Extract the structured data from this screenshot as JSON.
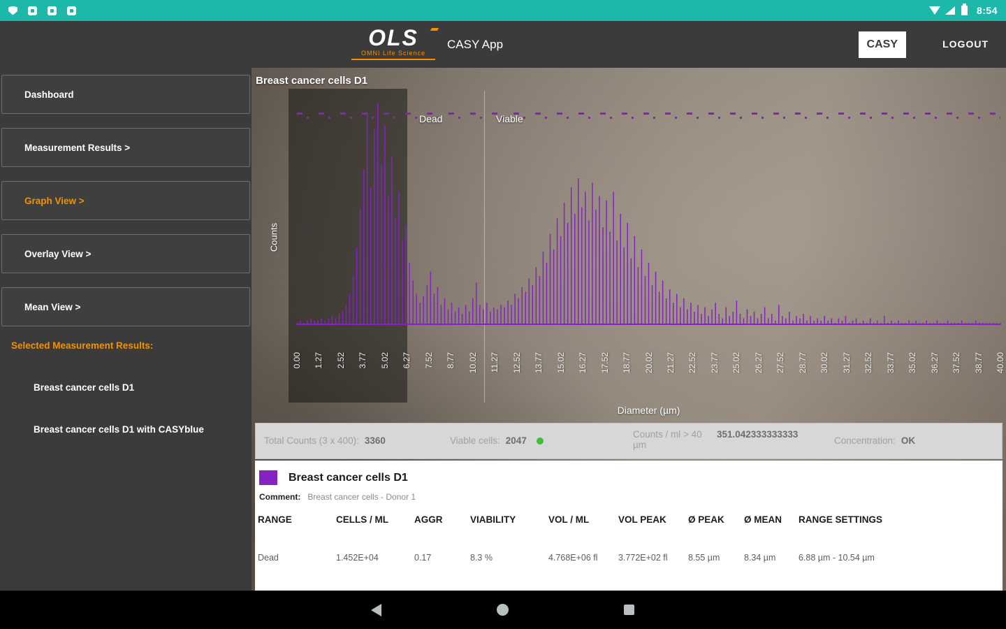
{
  "status_bar": {
    "time": "8:54"
  },
  "header": {
    "logo_text": "OLS",
    "logo_subtitle": "OMNI Life Science",
    "app_title": "CASY App",
    "casy_button_label": "CASY",
    "logout_label": "LOGOUT",
    "accent_color": "#f39200"
  },
  "sidebar": {
    "nav_items": [
      {
        "label": "Dashboard",
        "active": false
      },
      {
        "label": "Measurement Results >",
        "active": false
      },
      {
        "label": "Graph View >",
        "active": true
      },
      {
        "label": "Overlay View >",
        "active": false
      },
      {
        "label": "Mean View >",
        "active": false
      }
    ],
    "selected_results_label": "Selected Measurement Results:",
    "selected_results": [
      "Breast cancer cells D1",
      "Breast cancer cells D1 with CASYblue"
    ]
  },
  "chart_data": {
    "type": "bar",
    "title": "Breast cancer cells D1",
    "xlabel": "Diameter (µm)",
    "ylabel": "Counts",
    "xlim": [
      0,
      40
    ],
    "color": "#8622c2",
    "region_labels": {
      "dead": "Dead",
      "viable": "Viable"
    },
    "x_ticks": [
      "0.00",
      "1.27",
      "2.52",
      "3.77",
      "5.02",
      "6.27",
      "7.52",
      "8.77",
      "10.02",
      "11.27",
      "12.52",
      "13.77",
      "15.02",
      "16.27",
      "17.52",
      "18.77",
      "20.02",
      "21.27",
      "22.52",
      "23.77",
      "25.02",
      "26.27",
      "27.52",
      "28.77",
      "30.02",
      "31.27",
      "32.52",
      "33.77",
      "35.02",
      "36.27",
      "37.52",
      "38.77",
      "40.00"
    ],
    "values": [
      1,
      2,
      1,
      2,
      3,
      2,
      2,
      3,
      2,
      3,
      4,
      3,
      5,
      6,
      9,
      14,
      22,
      35,
      52,
      70,
      95,
      62,
      88,
      100,
      72,
      90,
      58,
      76,
      48,
      60,
      38,
      45,
      28,
      20,
      14,
      10,
      13,
      18,
      24,
      14,
      17,
      9,
      12,
      7,
      10,
      6,
      8,
      5,
      9,
      6,
      12,
      19,
      9,
      7,
      10,
      6,
      8,
      7,
      9,
      8,
      11,
      9,
      14,
      12,
      17,
      15,
      21,
      18,
      26,
      22,
      33,
      28,
      41,
      34,
      48,
      40,
      55,
      46,
      62,
      50,
      66,
      53,
      60,
      47,
      64,
      52,
      58,
      44,
      56,
      42,
      60,
      38,
      50,
      35,
      46,
      30,
      40,
      26,
      34,
      22,
      28,
      18,
      24,
      15,
      20,
      12,
      16,
      10,
      14,
      8,
      12,
      7,
      10,
      6,
      9,
      5,
      8,
      4,
      7,
      10,
      5,
      3,
      8,
      4,
      6,
      11,
      5,
      3,
      7,
      4,
      6,
      3,
      5,
      8,
      3,
      5,
      2,
      9,
      4,
      3,
      6,
      2,
      4,
      3,
      5,
      2,
      4,
      2,
      3,
      2,
      4,
      2,
      3,
      1,
      3,
      2,
      4,
      1,
      2,
      3,
      1,
      2,
      1,
      3,
      1,
      2,
      1,
      4,
      1,
      2,
      1,
      2,
      1,
      1,
      2,
      1,
      2,
      1,
      1,
      2,
      1,
      1,
      2,
      1,
      1,
      2,
      1,
      1,
      1,
      2,
      1,
      1,
      1,
      2,
      1,
      1,
      1,
      1,
      1,
      1,
      1
    ]
  },
  "stats": {
    "total_counts_label": "Total Counts (3 x 400):",
    "total_counts_value": "3360",
    "viable_cells_label": "Viable cells:",
    "viable_cells_value": "2047",
    "counts_per_ml_label": "Counts / ml > 40 µm",
    "counts_per_ml_value": "351.042333333333",
    "concentration_label": "Concentration:",
    "concentration_value": "OK",
    "status_color": "#3dbf3d"
  },
  "details": {
    "swatch_color": "#8622c2",
    "sample_name": "Breast cancer cells D1",
    "comment_label": "Comment:",
    "comment_value": "Breast cancer cells - Donor 1",
    "table": {
      "headers": [
        "RANGE",
        "CELLS / ML",
        "AGGR",
        "VIABILITY",
        "VOL / ML",
        "VOL PEAK",
        "Ø PEAK",
        "Ø MEAN",
        "RANGE SETTINGS"
      ],
      "rows": [
        [
          "Dead",
          "1.452E+04",
          "0.17",
          "8.3 %",
          "4.768E+06 fl",
          "3.772E+02 fl",
          "8.55 µm",
          "8.34 µm",
          "6.88 µm - 10.54 µm"
        ]
      ]
    }
  }
}
